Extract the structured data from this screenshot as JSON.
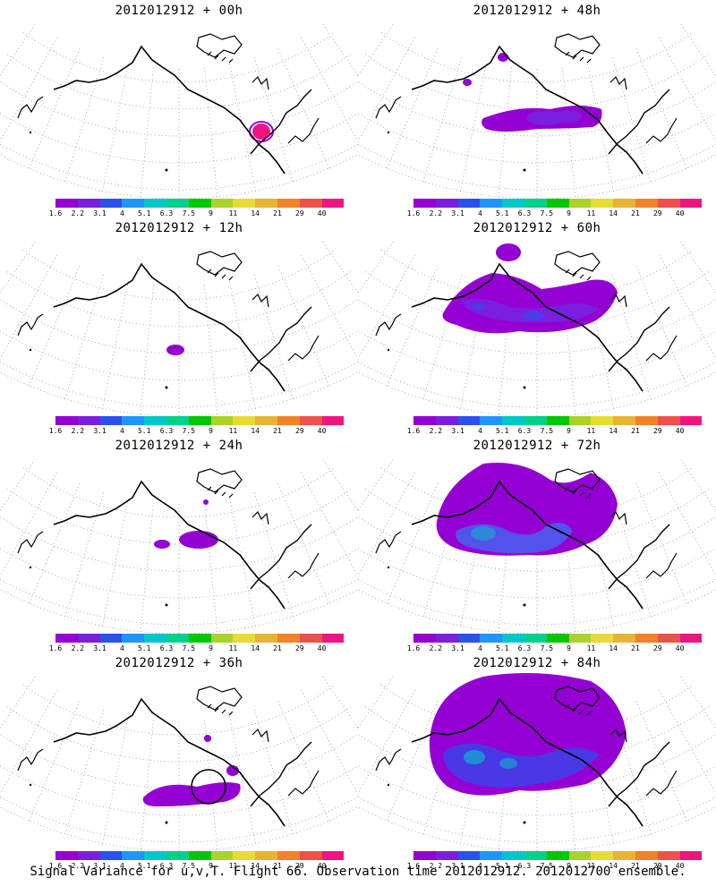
{
  "colorbar": {
    "labels": [
      "1.6",
      "2.2",
      "3.1",
      "4",
      "5.1",
      "6.3",
      "7.5",
      "9",
      "11",
      "14",
      "21",
      "29",
      "40"
    ],
    "colors": [
      "#9400d3",
      "#7a1fe0",
      "#2b50f0",
      "#1e96ff",
      "#00c8c8",
      "#00d28c",
      "#00c800",
      "#aad228",
      "#e6dc32",
      "#e6b432",
      "#f08228",
      "#f0504b",
      "#f01482"
    ]
  },
  "panels": [
    {
      "title": "2012012912 + 00h",
      "blobs": [
        {
          "kind": "pink"
        }
      ]
    },
    {
      "title": "2012012912 + 48h",
      "blobs": [
        {
          "kind": "band48"
        }
      ]
    },
    {
      "title": "2012012912 + 12h",
      "blobs": [
        {
          "kind": "small12"
        }
      ]
    },
    {
      "title": "2012012912 + 60h",
      "blobs": [
        {
          "kind": "band60"
        }
      ]
    },
    {
      "title": "2012012912 + 24h",
      "blobs": [
        {
          "kind": "small24"
        }
      ]
    },
    {
      "title": "2012012912 + 72h",
      "blobs": [
        {
          "kind": "band72"
        }
      ]
    },
    {
      "title": "2012012912 + 36h",
      "blobs": [
        {
          "kind": "band36"
        }
      ]
    },
    {
      "title": "2012012912 + 84h",
      "blobs": [
        {
          "kind": "band84"
        }
      ]
    }
  ],
  "footer": "Signal Variance for u,v,T. Flight 66. Observation time 2012012912. 2012012700 ensemble."
}
